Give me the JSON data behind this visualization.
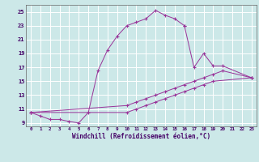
{
  "xlabel": "Windchill (Refroidissement éolien,°C)",
  "bg_color": "#cce8e8",
  "line_color": "#993399",
  "grid_color": "#ffffff",
  "x_min": -0.5,
  "x_max": 23.5,
  "y_min": 8.5,
  "y_max": 26.0,
  "series": [
    {
      "x": [
        0,
        1,
        2,
        3,
        4,
        5,
        6,
        7,
        8,
        9,
        10,
        11,
        12,
        13,
        14,
        15,
        16
      ],
      "y": [
        10.5,
        10.0,
        9.5,
        9.5,
        9.2,
        9.0,
        10.5,
        16.5,
        19.5,
        21.5,
        23.0,
        23.5,
        24.0,
        25.2,
        24.5,
        24.0,
        23.0
      ]
    },
    {
      "x": [
        16,
        17,
        18,
        19,
        20,
        23
      ],
      "y": [
        23.0,
        17.0,
        19.0,
        17.2,
        17.2,
        15.5
      ]
    },
    {
      "x": [
        0,
        10,
        11,
        12,
        13,
        14,
        15,
        16,
        17,
        18,
        19,
        20,
        23
      ],
      "y": [
        10.5,
        11.5,
        12.0,
        12.5,
        13.0,
        13.5,
        14.0,
        14.5,
        15.0,
        15.5,
        16.0,
        16.5,
        15.5
      ]
    },
    {
      "x": [
        0,
        10,
        11,
        12,
        13,
        14,
        15,
        16,
        17,
        18,
        19,
        23
      ],
      "y": [
        10.5,
        10.5,
        11.0,
        11.5,
        12.0,
        12.5,
        13.0,
        13.5,
        14.0,
        14.5,
        15.0,
        15.5
      ]
    }
  ],
  "yticks": [
    9,
    11,
    13,
    15,
    17,
    19,
    21,
    23,
    25
  ],
  "xticks": [
    0,
    1,
    2,
    3,
    4,
    5,
    6,
    7,
    8,
    9,
    10,
    11,
    12,
    13,
    14,
    15,
    16,
    17,
    18,
    19,
    20,
    21,
    22,
    23
  ]
}
